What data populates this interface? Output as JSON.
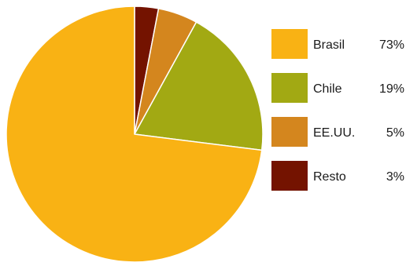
{
  "chart_data": {
    "type": "pie",
    "slices": [
      {
        "label": "Brasil",
        "value": 73,
        "value_label": "73%",
        "color": "#F9B214"
      },
      {
        "label": "Chile",
        "value": 19,
        "value_label": "19%",
        "color": "#A2A913"
      },
      {
        "label": "EE.UU.",
        "value": 5,
        "value_label": "5%",
        "color": "#D4861E"
      },
      {
        "label": "Resto",
        "value": 3,
        "value_label": "3%",
        "color": "#741300"
      }
    ],
    "start_angle": "12 o'clock",
    "direction": "clockwise",
    "order_clockwise": [
      "Resto",
      "EE.UU.",
      "Chile",
      "Brasil"
    ],
    "legend_position": "right",
    "title": ""
  }
}
